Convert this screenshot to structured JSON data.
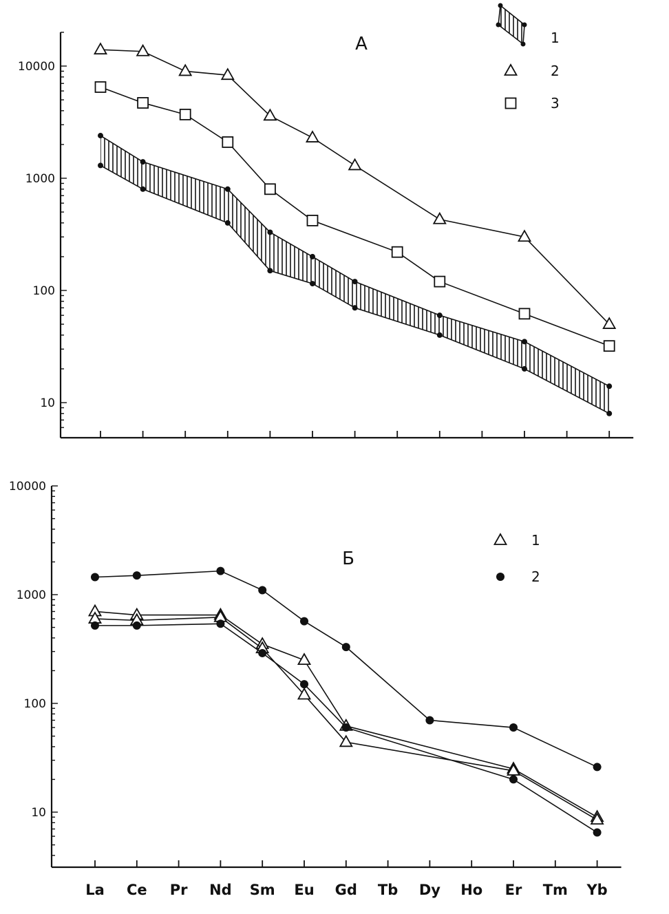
{
  "chart_data": [
    {
      "type": "line",
      "panel_label": "А",
      "yscale": "log",
      "ylim": [
        6,
        20000
      ],
      "yticks": [
        {
          "value": 10,
          "label": "10"
        },
        {
          "value": 100,
          "label": "100"
        },
        {
          "value": 1000,
          "label": "1000"
        },
        {
          "value": 10000,
          "label": "10000"
        }
      ],
      "categories": [
        "La",
        "Ce",
        "Pr",
        "Nd",
        "Sm",
        "Eu",
        "Gd",
        "Tb",
        "Dy",
        "Ho",
        "Er",
        "Tm",
        "Yb"
      ],
      "band": {
        "legend": "1",
        "upper": [
          2400,
          1400,
          null,
          800,
          330,
          200,
          120,
          null,
          60,
          null,
          35,
          null,
          14
        ],
        "lower": [
          1300,
          800,
          null,
          400,
          150,
          115,
          70,
          null,
          40,
          null,
          20,
          null,
          8
        ]
      },
      "series": [
        {
          "legend": "2",
          "marker": "triangle",
          "values": [
            14000,
            13500,
            9000,
            8300,
            3600,
            2300,
            1300,
            null,
            430,
            null,
            300,
            null,
            50
          ]
        },
        {
          "legend": "3",
          "marker": "square",
          "values": [
            6500,
            4700,
            3700,
            2100,
            800,
            420,
            null,
            220,
            120,
            null,
            62,
            null,
            32
          ]
        }
      ]
    },
    {
      "type": "line",
      "panel_label": "Б",
      "yscale": "log",
      "ylim": [
        4,
        10000
      ],
      "yticks": [
        {
          "value": 10,
          "label": "10"
        },
        {
          "value": 100,
          "label": "100"
        },
        {
          "value": 1000,
          "label": "1000"
        },
        {
          "value": 10000,
          "label": "10000"
        }
      ],
      "categories": [
        "La",
        "Ce",
        "Pr",
        "Nd",
        "Sm",
        "Eu",
        "Gd",
        "Tb",
        "Dy",
        "Ho",
        "Er",
        "Tm",
        "Yb"
      ],
      "legend": [
        {
          "marker": "triangle",
          "label": "1"
        },
        {
          "marker": "dot",
          "label": "2"
        }
      ],
      "series": [
        {
          "marker": "dot",
          "values": [
            1450,
            1500,
            null,
            1650,
            1100,
            570,
            330,
            null,
            70,
            null,
            60,
            null,
            26
          ]
        },
        {
          "marker": "triangle",
          "values": [
            700,
            650,
            null,
            650,
            350,
            250,
            62,
            null,
            null,
            null,
            25,
            null,
            9
          ]
        },
        {
          "marker": "triangle",
          "values": [
            600,
            580,
            null,
            620,
            320,
            120,
            44,
            null,
            null,
            null,
            24,
            null,
            8.5
          ]
        },
        {
          "marker": "dot",
          "values": [
            520,
            520,
            null,
            540,
            290,
            150,
            60,
            null,
            null,
            null,
            20,
            null,
            6.5
          ]
        }
      ]
    }
  ]
}
